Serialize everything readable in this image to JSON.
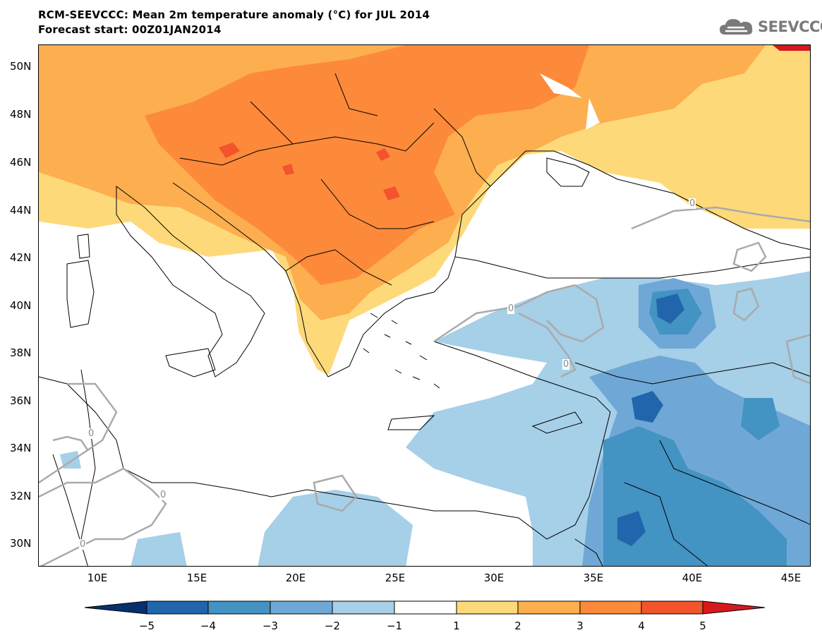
{
  "header": {
    "title_line1": "RCM-SEEVCCC: Mean 2m temperature anomaly (°C) for JUL 2014",
    "title_line2": "Forecast start: 00Z01JAN2014"
  },
  "logo": {
    "text": "SEEVCCC",
    "icon": "cloud-icon"
  },
  "map": {
    "lat_labels": [
      "50N",
      "48N",
      "46N",
      "44N",
      "42N",
      "40N",
      "38N",
      "36N",
      "34N",
      "32N",
      "30N"
    ],
    "lon_labels": [
      "10E",
      "15E",
      "20E",
      "25E",
      "30E",
      "35E",
      "40E",
      "45E"
    ],
    "contour_labels": [
      "0",
      "0",
      "0",
      "0",
      "0",
      "0"
    ]
  },
  "colorbar": {
    "labels": [
      "−5",
      "−4",
      "−3",
      "−2",
      "−1",
      "1",
      "2",
      "3",
      "4",
      "5"
    ],
    "colors": [
      "#08306b",
      "#2166ac",
      "#4393c3",
      "#6fa8d6",
      "#a6cfe8",
      "#ffffff",
      "#fdd97a",
      "#fdae4f",
      "#fc8a3a",
      "#f3532d",
      "#d7191c"
    ]
  }
}
